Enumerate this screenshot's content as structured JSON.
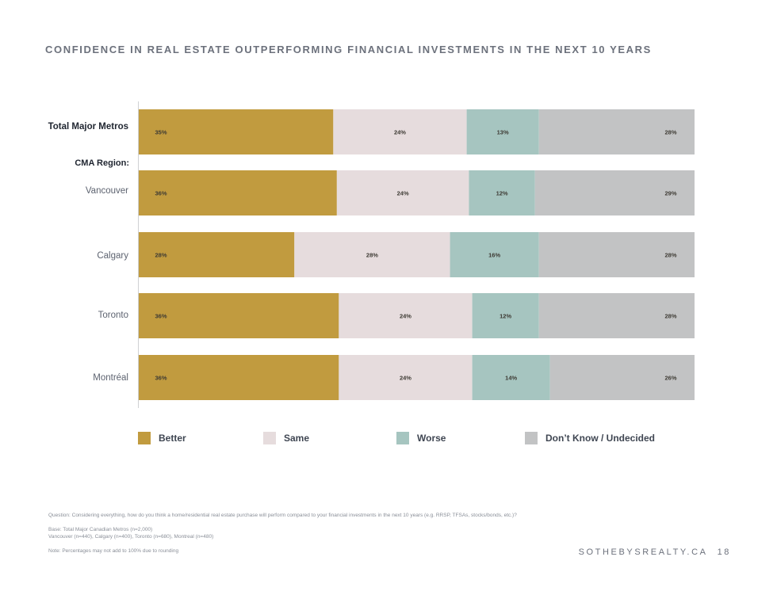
{
  "title": "CONFIDENCE IN REAL ESTATE OUTPERFORMING FINANCIAL INVESTMENTS IN THE NEXT 10 YEARS",
  "colors": {
    "better": "#c19b3f",
    "same": "#e6dcdd",
    "worse": "#a6c5c0",
    "dont_know": "#c2c3c4"
  },
  "chart_data": {
    "type": "bar",
    "orientation": "horizontal",
    "stacked": true,
    "title": "CONFIDENCE IN REAL ESTATE OUTPERFORMING FINANCIAL INVESTMENTS IN THE NEXT 10 YEARS",
    "categories": [
      "Total Major Metros",
      "Vancouver",
      "Calgary",
      "Toronto",
      "Montréal"
    ],
    "group_label": "CMA Region:",
    "series": [
      {
        "name": "Better",
        "key": "better",
        "values": [
          35,
          36,
          28,
          36,
          36
        ]
      },
      {
        "name": "Same",
        "key": "same",
        "values": [
          24,
          24,
          28,
          24,
          24
        ]
      },
      {
        "name": "Worse",
        "key": "worse",
        "values": [
          13,
          12,
          16,
          12,
          14
        ]
      },
      {
        "name": "Don't Know / Undecided",
        "key": "dont_know",
        "values": [
          28,
          29,
          28,
          28,
          26
        ]
      }
    ],
    "unit": "%",
    "legend_position": "bottom",
    "xlim": [
      0,
      100
    ],
    "grid": false
  },
  "legend": {
    "better": "Better",
    "same": "Same",
    "worse": "Worse",
    "dont_know": "Don’t Know / Undecided"
  },
  "footnotes": {
    "question": "Question: Considering everything, how do you think a home/residential real estate purchase will perform compared to your financial investments in the next 10 years (e.g. RRSP, TFSAs, stocks/bonds, etc.)?",
    "base_line1": "Base:  Total Major Canadian Metros (n=2,000)",
    "base_line2": "Vancouver (n=440), Calgary (n=400), Toronto (n=680), Montreal (n=480)",
    "note": "Note: Percentages may not add to 100% due to rounding"
  },
  "footer": {
    "brand": "SOTHEBYSREALTY.CA",
    "page": "18"
  }
}
